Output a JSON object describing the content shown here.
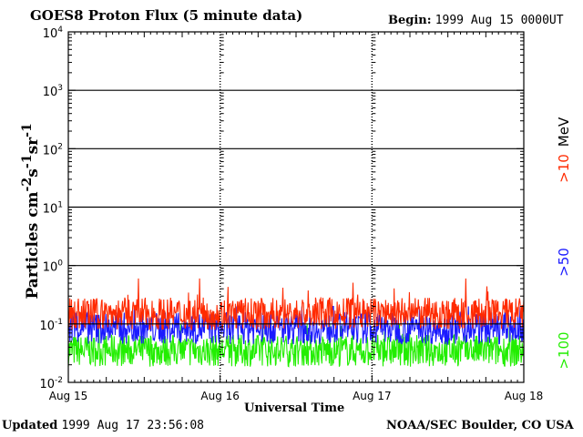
{
  "header": {
    "title": "GOES8 Proton Flux (5 minute data)",
    "begin_label": "Begin:",
    "begin_value": "1999 Aug 15 0000UT"
  },
  "footer": {
    "updated_label": "Updated",
    "updated_value": "1999 Aug 17 23:56:08",
    "credit": "NOAA/SEC Boulder, CO USA"
  },
  "colors": {
    "gt10": "#ff2a00",
    "gt50": "#1a1aff",
    "gt100": "#22ee00",
    "grid": "#000000"
  },
  "chart_data": {
    "type": "line",
    "title": "GOES8 Proton Flux (5 minute data)",
    "xlabel": "Universal Time",
    "ylabel": "Particles cm^-2 s^-1 sr^-1",
    "yscale": "log",
    "ylim": [
      0.01,
      10000
    ],
    "x_tick_labels": [
      "Aug 15",
      "Aug 16",
      "Aug 17",
      "Aug 18"
    ],
    "xlim_days": [
      0,
      3
    ],
    "y_ticks": [
      {
        "base": "10",
        "exp": "4",
        "value": 10000
      },
      {
        "base": "10",
        "exp": "3",
        "value": 1000
      },
      {
        "base": "10",
        "exp": "2",
        "value": 100
      },
      {
        "base": "10",
        "exp": "1",
        "value": 10
      },
      {
        "base": "10",
        "exp": "0",
        "value": 1
      },
      {
        "base": "10",
        "exp": "-1",
        "value": 0.1
      },
      {
        "base": "10",
        "exp": "-2",
        "value": 0.01
      }
    ],
    "grid": true,
    "legend_position": "right",
    "unit_label": "MeV",
    "series": [
      {
        "name": ">10",
        "color": "#ff2a00",
        "typical_value": 0.15,
        "min": 0.08,
        "max": 0.6
      },
      {
        "name": ">50",
        "color": "#1a1aff",
        "typical_value": 0.085,
        "min": 0.04,
        "max": 0.2
      },
      {
        "name": ">100",
        "color": "#22ee00",
        "typical_value": 0.035,
        "min": 0.015,
        "max": 0.1
      }
    ]
  }
}
